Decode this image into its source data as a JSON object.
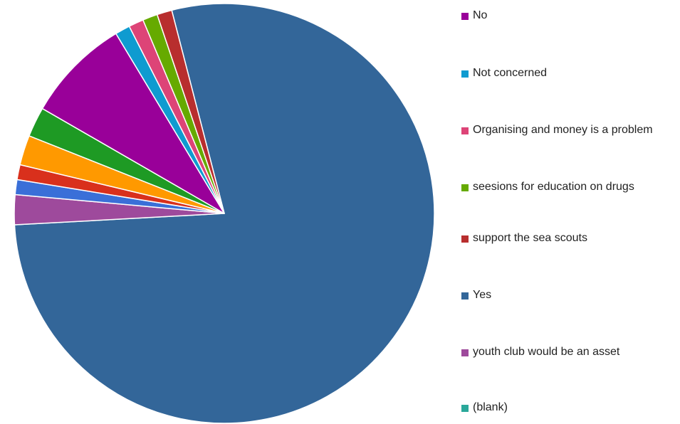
{
  "chart_data": {
    "type": "pie",
    "title": "",
    "start_angle_deg": -14.5,
    "slices": [
      {
        "label": "Yes",
        "value": 136,
        "color": "#336699"
      },
      {
        "label": "youth club would be an asset",
        "value": 4,
        "color": "#9E4A9C"
      },
      {
        "label": "(blank)",
        "value": 0,
        "color": "#2AA89A"
      },
      {
        "label": "",
        "value": 2,
        "color": "#3A6FD8"
      },
      {
        "label": "",
        "value": 2,
        "color": "#D9301C"
      },
      {
        "label": "",
        "value": 4,
        "color": "#FF9900"
      },
      {
        "label": "",
        "value": 4,
        "color": "#1E9A24"
      },
      {
        "label": "No",
        "value": 14,
        "color": "#990099"
      },
      {
        "label": "Not concerned",
        "value": 2,
        "color": "#0F9BD0"
      },
      {
        "label": "Organising and money is a problem",
        "value": 2,
        "color": "#DD4477"
      },
      {
        "label": "seesions for education on drugs",
        "value": 2,
        "color": "#66AA00"
      },
      {
        "label": "support the sea scouts",
        "value": 2,
        "color": "#B82E2E"
      }
    ],
    "legend": [
      {
        "label": "No",
        "color": "#990099"
      },
      {
        "label": "Not concerned",
        "color": "#0F9BD0"
      },
      {
        "label": "Organising and money is a problem",
        "color": "#DD4477"
      },
      {
        "label": "seesions for education on drugs",
        "color": "#66AA00"
      },
      {
        "label": "support the sea scouts",
        "color": "#B82E2E"
      },
      {
        "label": "Yes",
        "color": "#336699"
      },
      {
        "label": "youth club would be an asset",
        "color": "#9E4A9C"
      },
      {
        "label": "(blank)",
        "color": "#2AA89A"
      }
    ],
    "legend_position": "right"
  }
}
